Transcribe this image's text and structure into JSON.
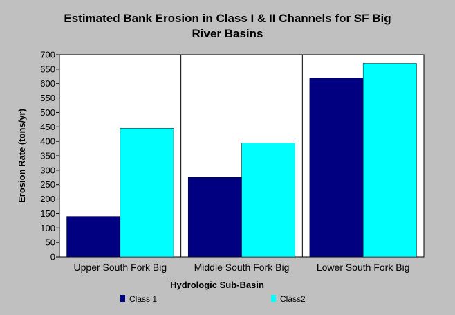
{
  "chart_data": {
    "type": "bar",
    "title_lines": [
      "Estimated Bank Erosion in Class I & II Channels for SF Big",
      "River Basins"
    ],
    "xlabel": "Hydrologic Sub-Basin",
    "ylabel": "Erosion Rate (tons/yr)",
    "categories": [
      "Upper South Fork Big",
      "Middle South Fork Big",
      "Lower South Fork Big"
    ],
    "series": [
      {
        "name": "Class 1",
        "color": "#000080",
        "values": [
          140,
          275,
          620
        ]
      },
      {
        "name": "Class2",
        "color": "#00ffff",
        "values": [
          445,
          395,
          670
        ]
      }
    ],
    "ylim": [
      0,
      700
    ],
    "yticks": [
      0,
      50,
      100,
      150,
      200,
      250,
      300,
      350,
      400,
      450,
      500,
      550,
      600,
      650,
      700
    ],
    "grid": false,
    "legend_position": "bottom",
    "plot_background": "#ffffff",
    "page_background": "#c0c0c0"
  }
}
